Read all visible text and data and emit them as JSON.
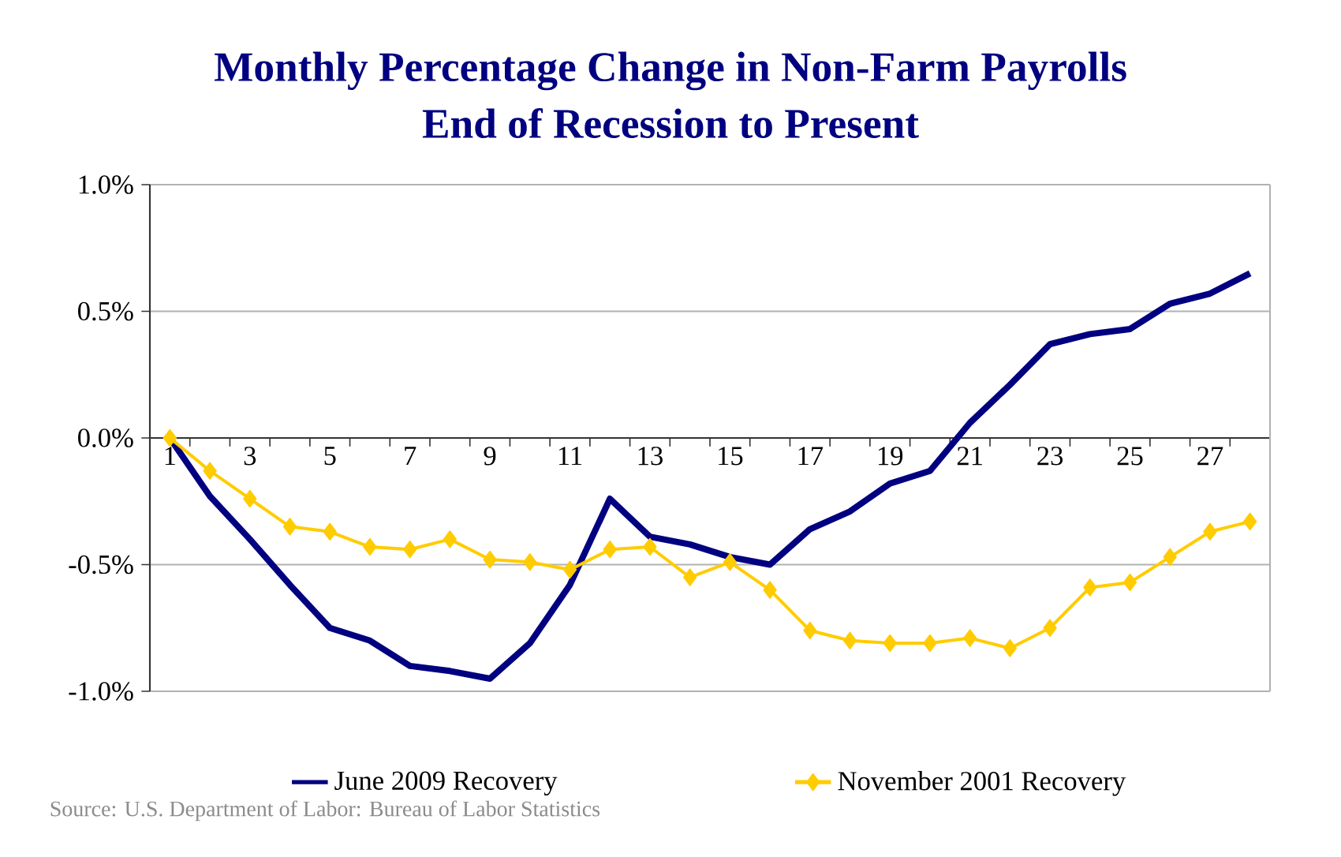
{
  "chart_data": {
    "type": "line",
    "title": "Monthly Percentage Change in Non-Farm Payrolls",
    "subtitle": "End of Recession to Present",
    "categories": [
      "1",
      null,
      "3",
      null,
      "5",
      null,
      "7",
      null,
      "9",
      null,
      "11",
      null,
      "13",
      null,
      "15",
      null,
      "17",
      null,
      "19",
      null,
      "21",
      null,
      "23",
      null,
      "25",
      null,
      "27",
      null
    ],
    "series": [
      {
        "name": "June 2009 Recovery",
        "color": "#000080",
        "marker": "none",
        "values": [
          0.0,
          -0.23,
          -0.4,
          -0.58,
          -0.75,
          -0.8,
          -0.9,
          -0.92,
          -0.95,
          -0.81,
          -0.58,
          -0.24,
          -0.39,
          -0.42,
          -0.47,
          -0.5,
          -0.36,
          -0.29,
          -0.18,
          -0.13,
          0.06,
          0.21,
          0.37,
          0.41,
          0.43,
          0.53,
          0.57,
          0.65
        ]
      },
      {
        "name": "November 2001 Recovery",
        "color": "#ffcc00",
        "marker": "diamond",
        "values": [
          0.0,
          -0.13,
          -0.24,
          -0.35,
          -0.37,
          -0.43,
          -0.44,
          -0.4,
          -0.48,
          -0.49,
          -0.52,
          -0.44,
          -0.43,
          -0.55,
          -0.49,
          -0.6,
          -0.76,
          -0.8,
          -0.81,
          -0.81,
          -0.79,
          -0.83,
          -0.75,
          -0.59,
          -0.57,
          -0.47,
          -0.37,
          -0.33
        ]
      }
    ],
    "ylim": [
      -1.0,
      1.0
    ],
    "yticks": [
      {
        "value": -1.0,
        "label": "-1.0%"
      },
      {
        "value": -0.5,
        "label": "-0.5%"
      },
      {
        "value": 0.0,
        "label": "0.0%"
      },
      {
        "value": 0.5,
        "label": "0.5%"
      },
      {
        "value": 1.0,
        "label": "1.0%"
      }
    ],
    "grid": "y",
    "legend": "bottom",
    "annotations": [
      "Source: U.S. Department of Labor: Bureau of Labor Statistics"
    ]
  }
}
